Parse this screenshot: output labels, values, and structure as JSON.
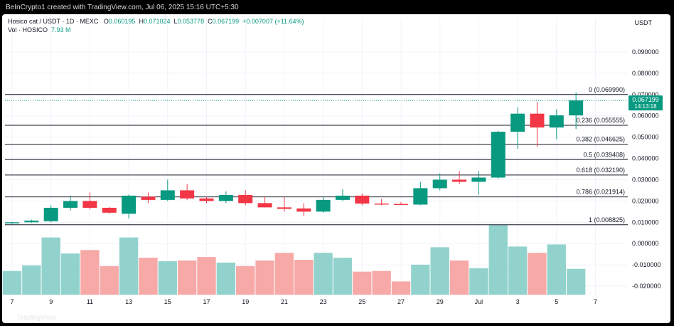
{
  "header": {
    "caption": "BeInCrypto1 created with TradingView.com, Jul 06, 2025 15:16 UTC+5:30"
  },
  "legend": {
    "symbol": "Hosico cat / USDT · 1D · MEXC",
    "o_label": "O",
    "o_value": "0.060195",
    "h_label": "H",
    "h_value": "0.071024",
    "l_label": "L",
    "l_value": "0.053778",
    "c_label": "C",
    "c_value": "0.067199",
    "change": "+0.007007 (+11.64%)",
    "vol_label": "Vol · HOSICO",
    "vol_value": "7.93 M"
  },
  "currency": "USDT",
  "logo": {
    "text": "TradingView",
    "icon": "tradingview-logo-icon"
  },
  "colors": {
    "up": "#089981",
    "down": "#f23645",
    "vol_up": "#92d2cc",
    "vol_down": "#f7a9a7",
    "grid": "#f0f3fa",
    "fib_line": "#131722",
    "price_label_bg": "#089981"
  },
  "chart_data": {
    "type": "candlestick",
    "title": "",
    "xlabel": "",
    "ylabel": "",
    "ylim": [
      -0.024,
      0.097
    ],
    "y_ticks": [
      "0.090000",
      "0.080000",
      "0.070000",
      "0.060000",
      "0.050000",
      "0.040000",
      "0.030000",
      "0.020000",
      "0.010000",
      "0.000000",
      "-0.010000",
      "-0.020000"
    ],
    "x_ticks": [
      "7",
      "9",
      "11",
      "13",
      "15",
      "17",
      "19",
      "21",
      "23",
      "25",
      "27",
      "29",
      "Jul",
      "3",
      "5",
      "7"
    ],
    "current_price": {
      "value": "0.067199",
      "countdown": "14:13:18"
    },
    "candles": [
      {
        "o": 0.0096,
        "h": 0.0102,
        "l": 0.0092,
        "c": 0.01
      },
      {
        "o": 0.01,
        "h": 0.0112,
        "l": 0.0098,
        "c": 0.0108
      },
      {
        "o": 0.0105,
        "h": 0.018,
        "l": 0.01,
        "c": 0.0168
      },
      {
        "o": 0.0168,
        "h": 0.0225,
        "l": 0.0155,
        "c": 0.02
      },
      {
        "o": 0.02,
        "h": 0.024,
        "l": 0.016,
        "c": 0.0168
      },
      {
        "o": 0.0168,
        "h": 0.0172,
        "l": 0.014,
        "c": 0.0145
      },
      {
        "o": 0.014,
        "h": 0.023,
        "l": 0.0118,
        "c": 0.0225
      },
      {
        "o": 0.022,
        "h": 0.024,
        "l": 0.019,
        "c": 0.0205
      },
      {
        "o": 0.0205,
        "h": 0.03,
        "l": 0.02,
        "c": 0.025
      },
      {
        "o": 0.025,
        "h": 0.028,
        "l": 0.0205,
        "c": 0.0212
      },
      {
        "o": 0.0212,
        "h": 0.022,
        "l": 0.019,
        "c": 0.02
      },
      {
        "o": 0.02,
        "h": 0.0245,
        "l": 0.019,
        "c": 0.0228
      },
      {
        "o": 0.0228,
        "h": 0.025,
        "l": 0.018,
        "c": 0.019
      },
      {
        "o": 0.019,
        "h": 0.022,
        "l": 0.017,
        "c": 0.017
      },
      {
        "o": 0.017,
        "h": 0.022,
        "l": 0.015,
        "c": 0.0163
      },
      {
        "o": 0.0165,
        "h": 0.019,
        "l": 0.013,
        "c": 0.015
      },
      {
        "o": 0.015,
        "h": 0.022,
        "l": 0.0145,
        "c": 0.0205
      },
      {
        "o": 0.0205,
        "h": 0.0255,
        "l": 0.02,
        "c": 0.0225
      },
      {
        "o": 0.0225,
        "h": 0.0235,
        "l": 0.018,
        "c": 0.0188
      },
      {
        "o": 0.0188,
        "h": 0.021,
        "l": 0.018,
        "c": 0.0185
      },
      {
        "o": 0.0186,
        "h": 0.0195,
        "l": 0.0182,
        "c": 0.0183
      },
      {
        "o": 0.0183,
        "h": 0.029,
        "l": 0.018,
        "c": 0.026
      },
      {
        "o": 0.026,
        "h": 0.033,
        "l": 0.025,
        "c": 0.03
      },
      {
        "o": 0.03,
        "h": 0.034,
        "l": 0.028,
        "c": 0.029
      },
      {
        "o": 0.029,
        "h": 0.034,
        "l": 0.023,
        "c": 0.031
      },
      {
        "o": 0.031,
        "h": 0.053,
        "l": 0.0305,
        "c": 0.0525
      },
      {
        "o": 0.0525,
        "h": 0.064,
        "l": 0.0445,
        "c": 0.061
      },
      {
        "o": 0.061,
        "h": 0.0665,
        "l": 0.0455,
        "c": 0.0545
      },
      {
        "o": 0.0545,
        "h": 0.063,
        "l": 0.049,
        "c": 0.0602
      },
      {
        "o": 0.0602,
        "h": 0.071,
        "l": 0.0538,
        "c": 0.0672
      }
    ],
    "volume_ylim": [
      0,
      1
    ],
    "volumes": [
      0.34,
      0.42,
      0.82,
      0.59,
      0.64,
      0.41,
      0.82,
      0.53,
      0.48,
      0.49,
      0.54,
      0.46,
      0.41,
      0.49,
      0.6,
      0.5,
      0.6,
      0.53,
      0.33,
      0.34,
      0.19,
      0.43,
      0.68,
      0.49,
      0.38,
      1.0,
      0.69,
      0.6,
      0.72,
      0.37
    ],
    "volume_dirs": [
      "up",
      "up",
      "up",
      "up",
      "down",
      "down",
      "up",
      "down",
      "up",
      "down",
      "down",
      "up",
      "down",
      "down",
      "down",
      "down",
      "up",
      "up",
      "down",
      "down",
      "down",
      "up",
      "up",
      "down",
      "up",
      "up",
      "up",
      "down",
      "up",
      "up"
    ],
    "fib_levels": [
      {
        "label": "0 (0.069990)",
        "value": 0.06999
      },
      {
        "label": "0.236 (0.055555)",
        "value": 0.055555
      },
      {
        "label": "0.382 (0.046625)",
        "value": 0.046625
      },
      {
        "label": "0.5 (0.039408)",
        "value": 0.039408
      },
      {
        "label": "0.618 (0.032190)",
        "value": 0.03219
      },
      {
        "label": "0.786 (0.021914)",
        "value": 0.021914
      },
      {
        "label": "1 (0.008825)",
        "value": 0.008825
      }
    ]
  }
}
